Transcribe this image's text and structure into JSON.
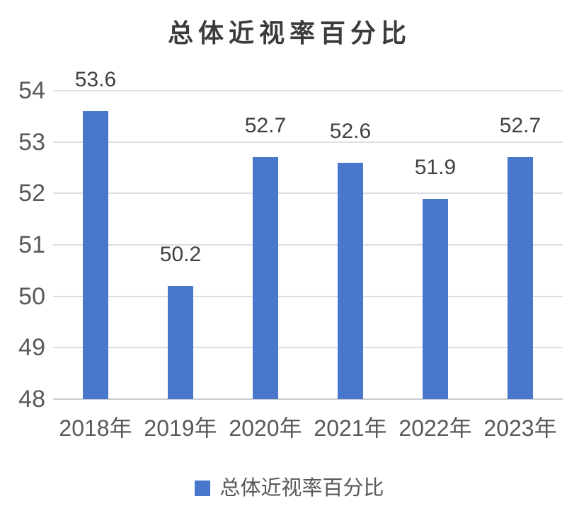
{
  "title": "总体近视率百分比",
  "legend": {
    "label": "总体近视率百分比"
  },
  "colors": {
    "bar": "#4877CB",
    "gridline": "#dcdee0",
    "axis_line": "#c9cbcd",
    "title_text": "#3b3b3b",
    "data_label_text": "#404040",
    "axis_label_text": "#595959",
    "background": "#ffffff"
  },
  "chart_data": {
    "type": "bar",
    "title": "总体近视率百分比",
    "series_name": "总体近视率百分比",
    "categories": [
      "2018年",
      "2019年",
      "2020年",
      "2021年",
      "2022年",
      "2023年"
    ],
    "values": [
      53.6,
      50.2,
      52.7,
      52.6,
      51.9,
      52.7
    ],
    "data_labels": [
      "53.6",
      "50.2",
      "52.7",
      "52.6",
      "51.9",
      "52.7"
    ],
    "xlabel": "",
    "ylabel": "",
    "ylim": [
      48,
      54
    ],
    "yticks": [
      54,
      53,
      52,
      51,
      50,
      49,
      48
    ],
    "grid": "horizontal",
    "legend_position": "bottom"
  }
}
